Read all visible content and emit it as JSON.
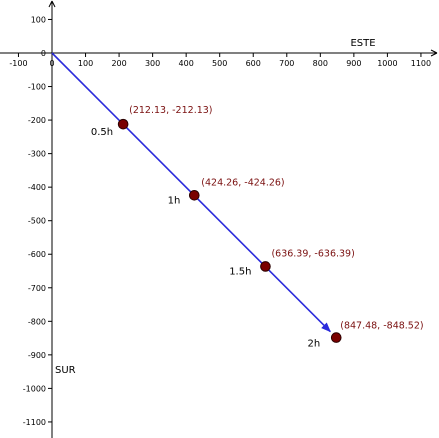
{
  "chart_data": {
    "type": "scatter",
    "title": "",
    "xlabel": "ESTE",
    "ylabel": "SUR",
    "xlim": [
      -120,
      1130
    ],
    "ylim": [
      -1130,
      130
    ],
    "x_ticks": [
      -100,
      0,
      100,
      200,
      300,
      400,
      500,
      600,
      700,
      800,
      900,
      1000,
      1100
    ],
    "x_tick_labels": [
      "-100",
      "0",
      "100",
      "200",
      "300",
      "400",
      "500",
      "600",
      "700",
      "800",
      "900",
      "1000",
      "1100"
    ],
    "y_ticks": [
      100,
      0,
      -100,
      -200,
      -300,
      -400,
      -500,
      -600,
      -700,
      -800,
      -900,
      -1000,
      -1100
    ],
    "y_tick_labels": [
      "100",
      "0",
      "-100",
      "-200",
      "-300",
      "-400",
      "-500",
      "-600",
      "-700",
      "-800",
      "-900",
      "-1000",
      "-1100"
    ],
    "grid": false,
    "vector": {
      "from": [
        0,
        0
      ],
      "to": [
        847.48,
        -848.52
      ]
    },
    "points": [
      {
        "x": 212.13,
        "y": -212.13,
        "time_label": "0.5h",
        "coord_label": "(212.13, -212.13)"
      },
      {
        "x": 424.26,
        "y": -424.26,
        "time_label": "1h",
        "coord_label": "(424.26, -424.26)"
      },
      {
        "x": 636.39,
        "y": -636.39,
        "time_label": "1.5h",
        "coord_label": "(636.39, -636.39)"
      },
      {
        "x": 847.48,
        "y": -848.52,
        "time_label": "2h",
        "coord_label": "(847.48, -848.52)"
      }
    ],
    "colors": {
      "vector": "#2b2bdc",
      "point_fill": "#7a0000",
      "point_stroke": "#2a0000",
      "coord_label": "#7a1010",
      "axis": "#000000"
    }
  }
}
